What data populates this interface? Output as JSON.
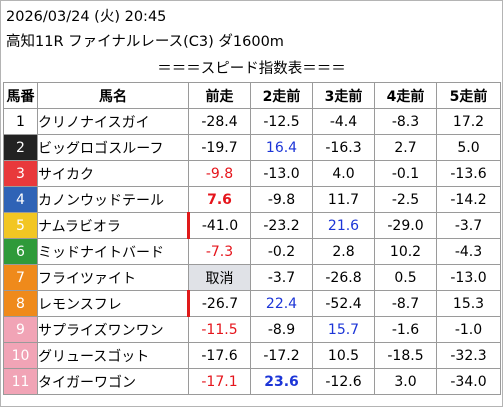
{
  "header": {
    "date_line": "2026/03/24 (火) 20:45",
    "race_line": "高知11R ファイナルレース(C3) ダ1600m"
  },
  "subtitle": "＝＝＝スピード指数表＝＝＝",
  "columns": [
    "馬番",
    "馬名",
    "前走",
    "2走前",
    "3走前",
    "4走前",
    "5走前"
  ],
  "colors": {
    "red_value": "#e5151c",
    "blue_value": "#1c35d7",
    "gray_cell": "#e0e2e7"
  },
  "rows": [
    {
      "num": "1",
      "name": "クリノナイスガイ",
      "bg": "#ffffff",
      "fg": "#000000",
      "vals": [
        "-28.4",
        "-12.5",
        "-4.4",
        "-8.3",
        "17.2"
      ]
    },
    {
      "num": "2",
      "name": "ビッグロゴスルーフ",
      "bg": "#222222",
      "fg": "#ffffff",
      "vals": [
        "-19.7",
        "16.4",
        "-16.3",
        "2.7",
        "5.0"
      ]
    },
    {
      "num": "3",
      "name": "サイカク",
      "bg": "#e8393b",
      "fg": "#ffffff",
      "vals": [
        "-9.8",
        "-13.0",
        "4.0",
        "-0.1",
        "-13.6"
      ]
    },
    {
      "num": "4",
      "name": "カノンウッドテール",
      "bg": "#2f63b6",
      "fg": "#ffffff",
      "vals": [
        "7.6",
        "-9.8",
        "11.7",
        "-2.5",
        "-14.2"
      ]
    },
    {
      "num": "5",
      "name": "ナムラビオラ",
      "bg": "#f2c623",
      "fg": "#ffffff",
      "vals": [
        "-41.0",
        "-23.2",
        "21.6",
        "-29.0",
        "-3.7"
      ]
    },
    {
      "num": "6",
      "name": "ミッドナイトバード",
      "bg": "#2f9a3a",
      "fg": "#ffffff",
      "vals": [
        "-7.3",
        "-0.2",
        "2.8",
        "10.2",
        "-4.3"
      ]
    },
    {
      "num": "7",
      "name": "フライツァイト",
      "bg": "#ef8a1b",
      "fg": "#ffffff",
      "vals": [
        "取消",
        "-3.7",
        "-26.8",
        "0.5",
        "-13.0"
      ]
    },
    {
      "num": "8",
      "name": "レモンスフレ",
      "bg": "#ef8a1b",
      "fg": "#ffffff",
      "vals": [
        "-26.7",
        "22.4",
        "-52.4",
        "-8.7",
        "15.3"
      ]
    },
    {
      "num": "9",
      "name": "サプライズワンワン",
      "bg": "#f1a4b6",
      "fg": "#ffffff",
      "vals": [
        "-11.5",
        "-8.9",
        "15.7",
        "-1.6",
        "-1.0"
      ]
    },
    {
      "num": "10",
      "name": "グリュースゴット",
      "bg": "#f1a4b6",
      "fg": "#ffffff",
      "vals": [
        "-17.6",
        "-17.2",
        "10.5",
        "-18.5",
        "-32.3"
      ]
    },
    {
      "num": "11",
      "name": "タイガーワゴン",
      "bg": "#f1a4b6",
      "fg": "#ffffff",
      "vals": [
        "-17.1",
        "23.6",
        "-12.6",
        "3.0",
        "-34.0"
      ]
    }
  ]
}
